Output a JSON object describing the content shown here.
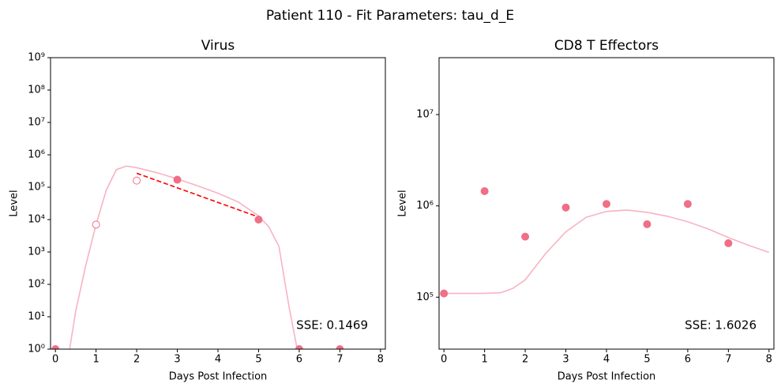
{
  "title": "Patient 110 - Fit Parameters: tau_d_E",
  "chart_data": [
    {
      "type": "line",
      "title": "Virus",
      "x_label": "Days Post Infection",
      "y_label": "Level",
      "log_y": true,
      "xlim": [
        -0.12,
        8.12
      ],
      "xticks": [
        0,
        1,
        2,
        3,
        4,
        5,
        6,
        7,
        8
      ],
      "ylim": [
        1,
        1000000000
      ],
      "yticks": [
        {
          "value": 1,
          "label": "10⁰"
        },
        {
          "value": 10,
          "label": "10¹"
        },
        {
          "value": 100,
          "label": "10²"
        },
        {
          "value": 1000,
          "label": "10³"
        },
        {
          "value": 10000,
          "label": "10⁴"
        },
        {
          "value": 100000,
          "label": "10⁵"
        },
        {
          "value": 1000000,
          "label": "10⁶"
        },
        {
          "value": 10000000,
          "label": "10⁷"
        },
        {
          "value": 100000000,
          "label": "10⁸"
        },
        {
          "value": 1000000000,
          "label": "10⁹"
        }
      ],
      "series": [
        {
          "style": "line",
          "color": "#f7b3c2",
          "x": [
            0.35,
            0.5,
            0.75,
            1,
            1.25,
            1.5,
            1.75,
            2,
            2.5,
            3,
            3.5,
            4,
            4.5,
            5,
            5.25,
            5.5,
            5.75,
            5.95
          ],
          "values": [
            1,
            15,
            400,
            7000,
            80000,
            350000,
            450000,
            400000,
            280000,
            180000,
            110000,
            65000,
            35000,
            13000,
            6000,
            1500,
            20,
            1
          ]
        },
        {
          "style": "dashed",
          "color": "#ff0000",
          "x": [
            2,
            5
          ],
          "values": [
            270000,
            12000
          ]
        },
        {
          "style": "open-marker",
          "color": "#ef6f86",
          "x": [
            1,
            2
          ],
          "values": [
            7000,
            160000
          ]
        },
        {
          "style": "marker",
          "color": "#ef6f86",
          "x": [
            0,
            3,
            5,
            6,
            7
          ],
          "values": [
            1,
            170000,
            10000,
            1,
            1
          ]
        }
      ],
      "annotation": "SSE: 0.1469"
    },
    {
      "type": "line",
      "title": "CD8 T Effectors",
      "x_label": "Days Post Infection",
      "y_label": "Level",
      "log_y": true,
      "xlim": [
        -0.12,
        8.12
      ],
      "xticks": [
        0,
        1,
        2,
        3,
        4,
        5,
        6,
        7,
        8
      ],
      "ylim": [
        27000,
        42000000
      ],
      "yticks": [
        {
          "value": 100000,
          "label": "10⁵"
        },
        {
          "value": 1000000,
          "label": "10⁶"
        },
        {
          "value": 10000000,
          "label": "10⁷"
        }
      ],
      "series": [
        {
          "style": "line",
          "color": "#f7b3c2",
          "x": [
            0,
            0.5,
            1,
            1.4,
            1.7,
            2,
            2.5,
            3,
            3.5,
            4,
            4.5,
            5,
            5.5,
            6,
            6.5,
            7,
            7.5,
            8
          ],
          "values": [
            110000,
            110000,
            110000,
            112000,
            125000,
            155000,
            300000,
            520000,
            750000,
            870000,
            900000,
            850000,
            770000,
            670000,
            560000,
            450000,
            370000,
            310000
          ]
        },
        {
          "style": "marker",
          "color": "#ef6f86",
          "x": [
            0,
            1,
            2,
            3,
            4,
            5,
            6,
            7
          ],
          "values": [
            110000,
            1450000,
            460000,
            960000,
            1050000,
            630000,
            1050000,
            390000
          ]
        }
      ],
      "annotation": "SSE: 1.6026"
    }
  ]
}
